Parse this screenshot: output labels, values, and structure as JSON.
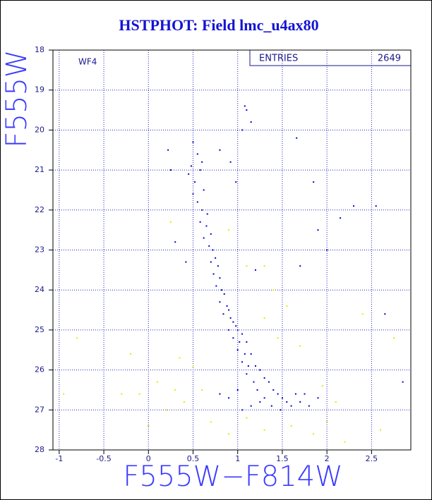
{
  "chart_data": {
    "type": "scatter",
    "title": "HSTPHOT: Field lmc_u4ax80",
    "x_label": "F555W−F814W",
    "y_label": "F555W",
    "annotation": "WF4",
    "stats": {
      "label": "ENTRIES",
      "value": 2649
    },
    "xlim": [
      -1.07,
      2.94
    ],
    "ylim": [
      28,
      18
    ],
    "y_inverted": true,
    "xticks": [
      -1,
      -0.5,
      0,
      0.5,
      1,
      1.5,
      2,
      2.5
    ],
    "yticks": [
      18,
      19,
      20,
      21,
      22,
      23,
      24,
      25,
      26,
      27,
      28
    ],
    "grid": true,
    "series": [
      {
        "color": "#0000cc",
        "x": [
          0.5,
          0.55,
          0.48,
          0.6,
          0.45,
          0.52,
          0.58,
          0.5,
          0.62,
          0.55,
          0.6,
          0.66,
          0.58,
          0.65,
          0.7,
          0.62,
          0.68,
          0.72,
          0.75,
          0.7,
          0.78,
          0.73,
          0.8,
          0.76,
          0.82,
          0.85,
          0.8,
          0.88,
          0.9,
          0.84,
          0.92,
          0.95,
          0.98,
          0.9,
          1.0,
          1.05,
          0.95,
          1.02,
          1.1,
          1.0,
          1.08,
          1.15,
          1.05,
          1.12,
          1.2,
          1.25,
          1.1,
          1.3,
          1.18,
          1.35,
          1.22,
          1.4,
          1.45,
          1.3,
          1.5,
          1.55,
          1.25,
          1.38,
          1.6,
          1.48,
          1.7,
          1.65,
          1.8,
          1.0,
          0.9,
          0.8,
          1.15,
          1.05,
          1.75,
          1.9,
          1.08,
          1.1,
          1.15,
          1.05,
          0.92,
          0.98,
          0.8,
          0.22,
          0.25,
          0.3,
          0.42,
          1.66,
          1.85,
          2.15,
          2.3,
          2.55,
          1.9,
          2.0,
          1.7,
          2.65,
          2.85,
          1.2
        ],
        "y": [
          20.3,
          20.6,
          20.9,
          20.8,
          21.1,
          21.3,
          21.0,
          21.6,
          21.5,
          21.8,
          22.0,
          22.1,
          22.3,
          22.4,
          22.6,
          22.7,
          22.9,
          23.0,
          23.2,
          23.3,
          23.4,
          23.6,
          23.7,
          23.9,
          24.0,
          24.1,
          24.3,
          24.4,
          24.5,
          24.6,
          24.7,
          24.8,
          24.9,
          25.0,
          25.0,
          25.1,
          25.2,
          25.3,
          25.3,
          25.5,
          25.6,
          25.6,
          25.8,
          25.9,
          25.9,
          26.0,
          26.1,
          26.2,
          26.3,
          26.3,
          26.5,
          26.5,
          26.6,
          26.7,
          26.7,
          26.8,
          26.8,
          26.9,
          26.9,
          27.0,
          26.8,
          26.6,
          26.9,
          26.5,
          26.7,
          26.6,
          26.9,
          27.0,
          26.6,
          26.7,
          19.4,
          19.5,
          19.8,
          20.0,
          20.8,
          21.3,
          20.5,
          20.5,
          21.0,
          22.8,
          23.3,
          20.2,
          21.3,
          22.2,
          21.9,
          21.9,
          22.5,
          23.0,
          23.4,
          24.6,
          26.3,
          23.5
        ]
      },
      {
        "color": "#e6e600",
        "x": [
          0.25,
          0.9,
          1.1,
          1.3,
          1.4,
          1.55,
          1.3,
          -0.8,
          -0.2,
          0.1,
          -0.1,
          -0.95,
          0.3,
          0.4,
          0.6,
          0.7,
          0.9,
          1.1,
          1.3,
          1.6,
          1.85,
          2.0,
          2.2,
          2.6,
          2.75,
          2.4,
          1.95,
          2.1,
          0.0,
          -0.3,
          0.2,
          1.7,
          0.5,
          1.45,
          0.35
        ],
        "y": [
          22.3,
          22.5,
          23.4,
          23.4,
          24.0,
          24.4,
          24.7,
          25.2,
          25.6,
          26.3,
          26.6,
          26.6,
          26.5,
          26.8,
          26.5,
          27.3,
          27.6,
          27.2,
          27.5,
          27.4,
          27.6,
          27.3,
          27.8,
          27.5,
          25.2,
          24.6,
          26.4,
          26.8,
          27.4,
          26.6,
          27.0,
          25.4,
          25.9,
          25.2,
          25.7
        ]
      }
    ]
  }
}
